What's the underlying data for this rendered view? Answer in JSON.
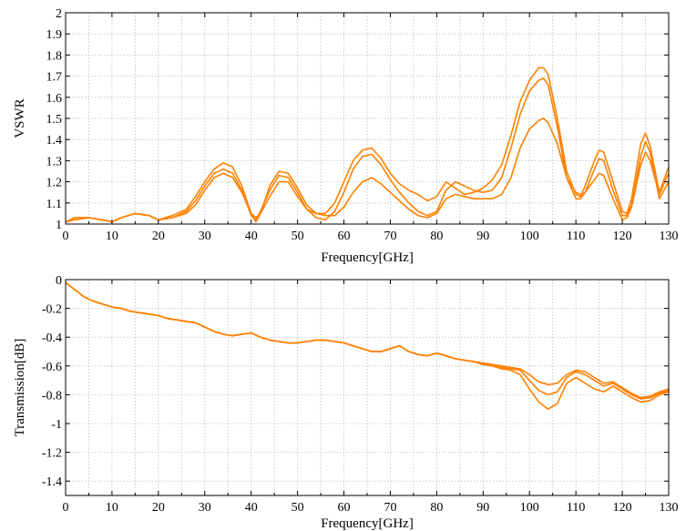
{
  "chart_data": [
    {
      "type": "line",
      "title": "",
      "xlabel": "Frequency[GHz]",
      "ylabel": "VSWR",
      "xlim": [
        0,
        130
      ],
      "ylim": [
        1,
        2
      ],
      "xticks": [
        0,
        10,
        20,
        30,
        40,
        50,
        60,
        70,
        80,
        90,
        100,
        110,
        120,
        130
      ],
      "xtick_labels": [
        "0",
        "10",
        "20",
        "30",
        "40",
        "50",
        "60",
        "70",
        "80",
        "90",
        "100",
        "110",
        "120",
        "130"
      ],
      "yticks": [
        1,
        1.1,
        1.2,
        1.3,
        1.4,
        1.5,
        1.6,
        1.7,
        1.8,
        1.9,
        2
      ],
      "ytick_labels": [
        "1",
        "1.1",
        "1.2",
        "1.3",
        "1.4",
        "1.5",
        "1.6",
        "1.7",
        "1.8",
        "1.9",
        "2"
      ],
      "grid": true,
      "line_color": "#ff8000",
      "series": [
        {
          "x": [
            0,
            2,
            5,
            8,
            10,
            12,
            15,
            18,
            20,
            23,
            26,
            28,
            30,
            32,
            34,
            36,
            38,
            40,
            41,
            42,
            44,
            46,
            48,
            50,
            52,
            54,
            56,
            58,
            60,
            62,
            64,
            66,
            68,
            70,
            72,
            74,
            76,
            78,
            80,
            82,
            84,
            86,
            88,
            90,
            92,
            94,
            96,
            98,
            100,
            102,
            103,
            104,
            106,
            108,
            110,
            111,
            112,
            114,
            115,
            116,
            118,
            120,
            121,
            122,
            124,
            125,
            126,
            128,
            130
          ],
          "y": [
            1.01,
            1.03,
            1.03,
            1.02,
            1.01,
            1.03,
            1.05,
            1.04,
            1.02,
            1.04,
            1.07,
            1.13,
            1.2,
            1.26,
            1.29,
            1.27,
            1.18,
            1.05,
            1.01,
            1.05,
            1.18,
            1.25,
            1.24,
            1.17,
            1.09,
            1.05,
            1.05,
            1.1,
            1.2,
            1.3,
            1.35,
            1.36,
            1.31,
            1.24,
            1.19,
            1.16,
            1.14,
            1.11,
            1.13,
            1.2,
            1.17,
            1.14,
            1.15,
            1.17,
            1.21,
            1.28,
            1.42,
            1.58,
            1.68,
            1.74,
            1.74,
            1.71,
            1.5,
            1.25,
            1.14,
            1.13,
            1.18,
            1.3,
            1.35,
            1.34,
            1.2,
            1.06,
            1.05,
            1.12,
            1.38,
            1.43,
            1.37,
            1.15,
            1.27
          ]
        },
        {
          "x": [
            0,
            2,
            5,
            8,
            10,
            12,
            15,
            18,
            20,
            23,
            26,
            28,
            30,
            32,
            34,
            36,
            38,
            40,
            41,
            42,
            44,
            46,
            48,
            50,
            52,
            54,
            56,
            58,
            60,
            62,
            64,
            66,
            68,
            70,
            72,
            74,
            76,
            78,
            80,
            82,
            84,
            86,
            88,
            90,
            92,
            94,
            96,
            98,
            100,
            102,
            103,
            104,
            106,
            108,
            110,
            111,
            112,
            114,
            115,
            116,
            118,
            120,
            121,
            122,
            124,
            125,
            126,
            128,
            130
          ],
          "y": [
            1.01,
            1.03,
            1.03,
            1.02,
            1.01,
            1.03,
            1.05,
            1.04,
            1.02,
            1.03,
            1.06,
            1.11,
            1.18,
            1.24,
            1.26,
            1.24,
            1.16,
            1.04,
            1.02,
            1.06,
            1.16,
            1.23,
            1.22,
            1.15,
            1.07,
            1.03,
            1.02,
            1.06,
            1.15,
            1.26,
            1.32,
            1.33,
            1.28,
            1.21,
            1.15,
            1.1,
            1.06,
            1.04,
            1.06,
            1.16,
            1.2,
            1.18,
            1.16,
            1.15,
            1.16,
            1.22,
            1.36,
            1.52,
            1.63,
            1.68,
            1.69,
            1.66,
            1.46,
            1.22,
            1.12,
            1.12,
            1.15,
            1.26,
            1.31,
            1.3,
            1.16,
            1.04,
            1.04,
            1.09,
            1.32,
            1.39,
            1.34,
            1.12,
            1.2
          ]
        },
        {
          "x": [
            0,
            2,
            5,
            8,
            10,
            12,
            15,
            18,
            20,
            23,
            26,
            28,
            30,
            32,
            34,
            36,
            38,
            40,
            41,
            42,
            44,
            46,
            48,
            50,
            52,
            54,
            56,
            58,
            60,
            62,
            64,
            66,
            68,
            70,
            72,
            74,
            76,
            78,
            80,
            82,
            84,
            86,
            88,
            90,
            92,
            94,
            96,
            98,
            100,
            102,
            103,
            104,
            106,
            108,
            110,
            111,
            112,
            114,
            115,
            116,
            118,
            120,
            121,
            122,
            124,
            125,
            126,
            128,
            130
          ],
          "y": [
            1.01,
            1.02,
            1.03,
            1.02,
            1.01,
            1.03,
            1.05,
            1.04,
            1.02,
            1.03,
            1.05,
            1.09,
            1.16,
            1.22,
            1.24,
            1.22,
            1.15,
            1.05,
            1.03,
            1.05,
            1.13,
            1.2,
            1.2,
            1.13,
            1.07,
            1.05,
            1.04,
            1.04,
            1.08,
            1.15,
            1.2,
            1.22,
            1.19,
            1.15,
            1.11,
            1.07,
            1.04,
            1.03,
            1.05,
            1.12,
            1.14,
            1.13,
            1.12,
            1.12,
            1.12,
            1.14,
            1.22,
            1.36,
            1.45,
            1.49,
            1.5,
            1.48,
            1.38,
            1.22,
            1.15,
            1.14,
            1.15,
            1.21,
            1.24,
            1.23,
            1.12,
            1.02,
            1.03,
            1.08,
            1.28,
            1.34,
            1.3,
            1.14,
            1.24
          ]
        }
      ]
    },
    {
      "type": "line",
      "title": "",
      "xlabel": "Frequency[GHz]",
      "ylabel": "Transmission[dB]",
      "xlim": [
        0,
        130
      ],
      "ylim": [
        -1.5,
        0
      ],
      "xticks": [
        0,
        10,
        20,
        30,
        40,
        50,
        60,
        70,
        80,
        90,
        100,
        110,
        120,
        130
      ],
      "xtick_labels": [
        "0",
        "10",
        "20",
        "30",
        "40",
        "50",
        "60",
        "70",
        "80",
        "90",
        "100",
        "110",
        "120",
        "130"
      ],
      "yticks": [
        0,
        -0.2,
        -0.4,
        -0.6,
        -0.8,
        -1,
        -1.2,
        -1.4
      ],
      "ytick_labels": [
        "0",
        "-0.2",
        "-0.4",
        "-0.6",
        "-0.8",
        "-1",
        "-1.2",
        "-1.4"
      ],
      "grid": true,
      "line_color": "#ff8000",
      "series": [
        {
          "x": [
            0,
            2,
            4,
            6,
            8,
            10,
            12,
            14,
            16,
            18,
            20,
            22,
            24,
            26,
            28,
            30,
            32,
            34,
            36,
            38,
            40,
            42,
            44,
            46,
            48,
            50,
            52,
            54,
            56,
            58,
            60,
            62,
            64,
            66,
            68,
            70,
            72,
            74,
            76,
            78,
            80,
            82,
            84,
            86,
            88,
            90,
            92,
            94,
            96,
            98,
            100,
            102,
            104,
            106,
            108,
            110,
            112,
            114,
            116,
            118,
            120,
            122,
            124,
            126,
            128,
            130
          ],
          "y": [
            -0.02,
            -0.07,
            -0.12,
            -0.15,
            -0.17,
            -0.19,
            -0.2,
            -0.22,
            -0.23,
            -0.24,
            -0.25,
            -0.27,
            -0.28,
            -0.29,
            -0.3,
            -0.33,
            -0.36,
            -0.38,
            -0.39,
            -0.38,
            -0.37,
            -0.4,
            -0.42,
            -0.43,
            -0.44,
            -0.44,
            -0.43,
            -0.42,
            -0.42,
            -0.43,
            -0.44,
            -0.46,
            -0.48,
            -0.5,
            -0.5,
            -0.48,
            -0.46,
            -0.5,
            -0.52,
            -0.53,
            -0.51,
            -0.53,
            -0.55,
            -0.56,
            -0.57,
            -0.59,
            -0.6,
            -0.62,
            -0.63,
            -0.66,
            -0.76,
            -0.85,
            -0.9,
            -0.86,
            -0.72,
            -0.68,
            -0.72,
            -0.76,
            -0.78,
            -0.74,
            -0.78,
            -0.82,
            -0.85,
            -0.84,
            -0.8,
            -0.78
          ]
        },
        {
          "x": [
            0,
            2,
            4,
            6,
            8,
            10,
            12,
            14,
            16,
            18,
            20,
            22,
            24,
            26,
            28,
            30,
            32,
            34,
            36,
            38,
            40,
            42,
            44,
            46,
            48,
            50,
            52,
            54,
            56,
            58,
            60,
            62,
            64,
            66,
            68,
            70,
            72,
            74,
            76,
            78,
            80,
            82,
            84,
            86,
            88,
            90,
            92,
            94,
            96,
            98,
            100,
            102,
            104,
            106,
            108,
            110,
            112,
            114,
            116,
            118,
            120,
            122,
            124,
            126,
            128,
            130
          ],
          "y": [
            -0.02,
            -0.07,
            -0.12,
            -0.15,
            -0.17,
            -0.19,
            -0.2,
            -0.22,
            -0.23,
            -0.24,
            -0.25,
            -0.27,
            -0.28,
            -0.29,
            -0.3,
            -0.33,
            -0.36,
            -0.38,
            -0.39,
            -0.38,
            -0.37,
            -0.4,
            -0.42,
            -0.43,
            -0.44,
            -0.44,
            -0.43,
            -0.42,
            -0.42,
            -0.43,
            -0.44,
            -0.46,
            -0.48,
            -0.5,
            -0.5,
            -0.48,
            -0.46,
            -0.5,
            -0.52,
            -0.53,
            -0.51,
            -0.53,
            -0.55,
            -0.56,
            -0.57,
            -0.59,
            -0.6,
            -0.61,
            -0.62,
            -0.63,
            -0.7,
            -0.77,
            -0.8,
            -0.78,
            -0.68,
            -0.64,
            -0.66,
            -0.7,
            -0.74,
            -0.72,
            -0.76,
            -0.8,
            -0.83,
            -0.82,
            -0.79,
            -0.77
          ]
        },
        {
          "x": [
            0,
            2,
            4,
            6,
            8,
            10,
            12,
            14,
            16,
            18,
            20,
            22,
            24,
            26,
            28,
            30,
            32,
            34,
            36,
            38,
            40,
            42,
            44,
            46,
            48,
            50,
            52,
            54,
            56,
            58,
            60,
            62,
            64,
            66,
            68,
            70,
            72,
            74,
            76,
            78,
            80,
            82,
            84,
            86,
            88,
            90,
            92,
            94,
            96,
            98,
            100,
            102,
            104,
            106,
            108,
            110,
            112,
            114,
            116,
            118,
            120,
            122,
            124,
            126,
            128,
            130
          ],
          "y": [
            -0.02,
            -0.07,
            -0.12,
            -0.15,
            -0.17,
            -0.19,
            -0.2,
            -0.22,
            -0.23,
            -0.24,
            -0.25,
            -0.27,
            -0.28,
            -0.29,
            -0.3,
            -0.33,
            -0.36,
            -0.38,
            -0.39,
            -0.38,
            -0.37,
            -0.4,
            -0.42,
            -0.43,
            -0.44,
            -0.44,
            -0.43,
            -0.42,
            -0.42,
            -0.43,
            -0.44,
            -0.46,
            -0.48,
            -0.5,
            -0.5,
            -0.48,
            -0.46,
            -0.5,
            -0.52,
            -0.53,
            -0.51,
            -0.53,
            -0.55,
            -0.56,
            -0.57,
            -0.58,
            -0.59,
            -0.6,
            -0.61,
            -0.62,
            -0.66,
            -0.71,
            -0.73,
            -0.72,
            -0.66,
            -0.63,
            -0.64,
            -0.68,
            -0.72,
            -0.71,
            -0.75,
            -0.79,
            -0.82,
            -0.81,
            -0.78,
            -0.76
          ]
        }
      ]
    }
  ]
}
